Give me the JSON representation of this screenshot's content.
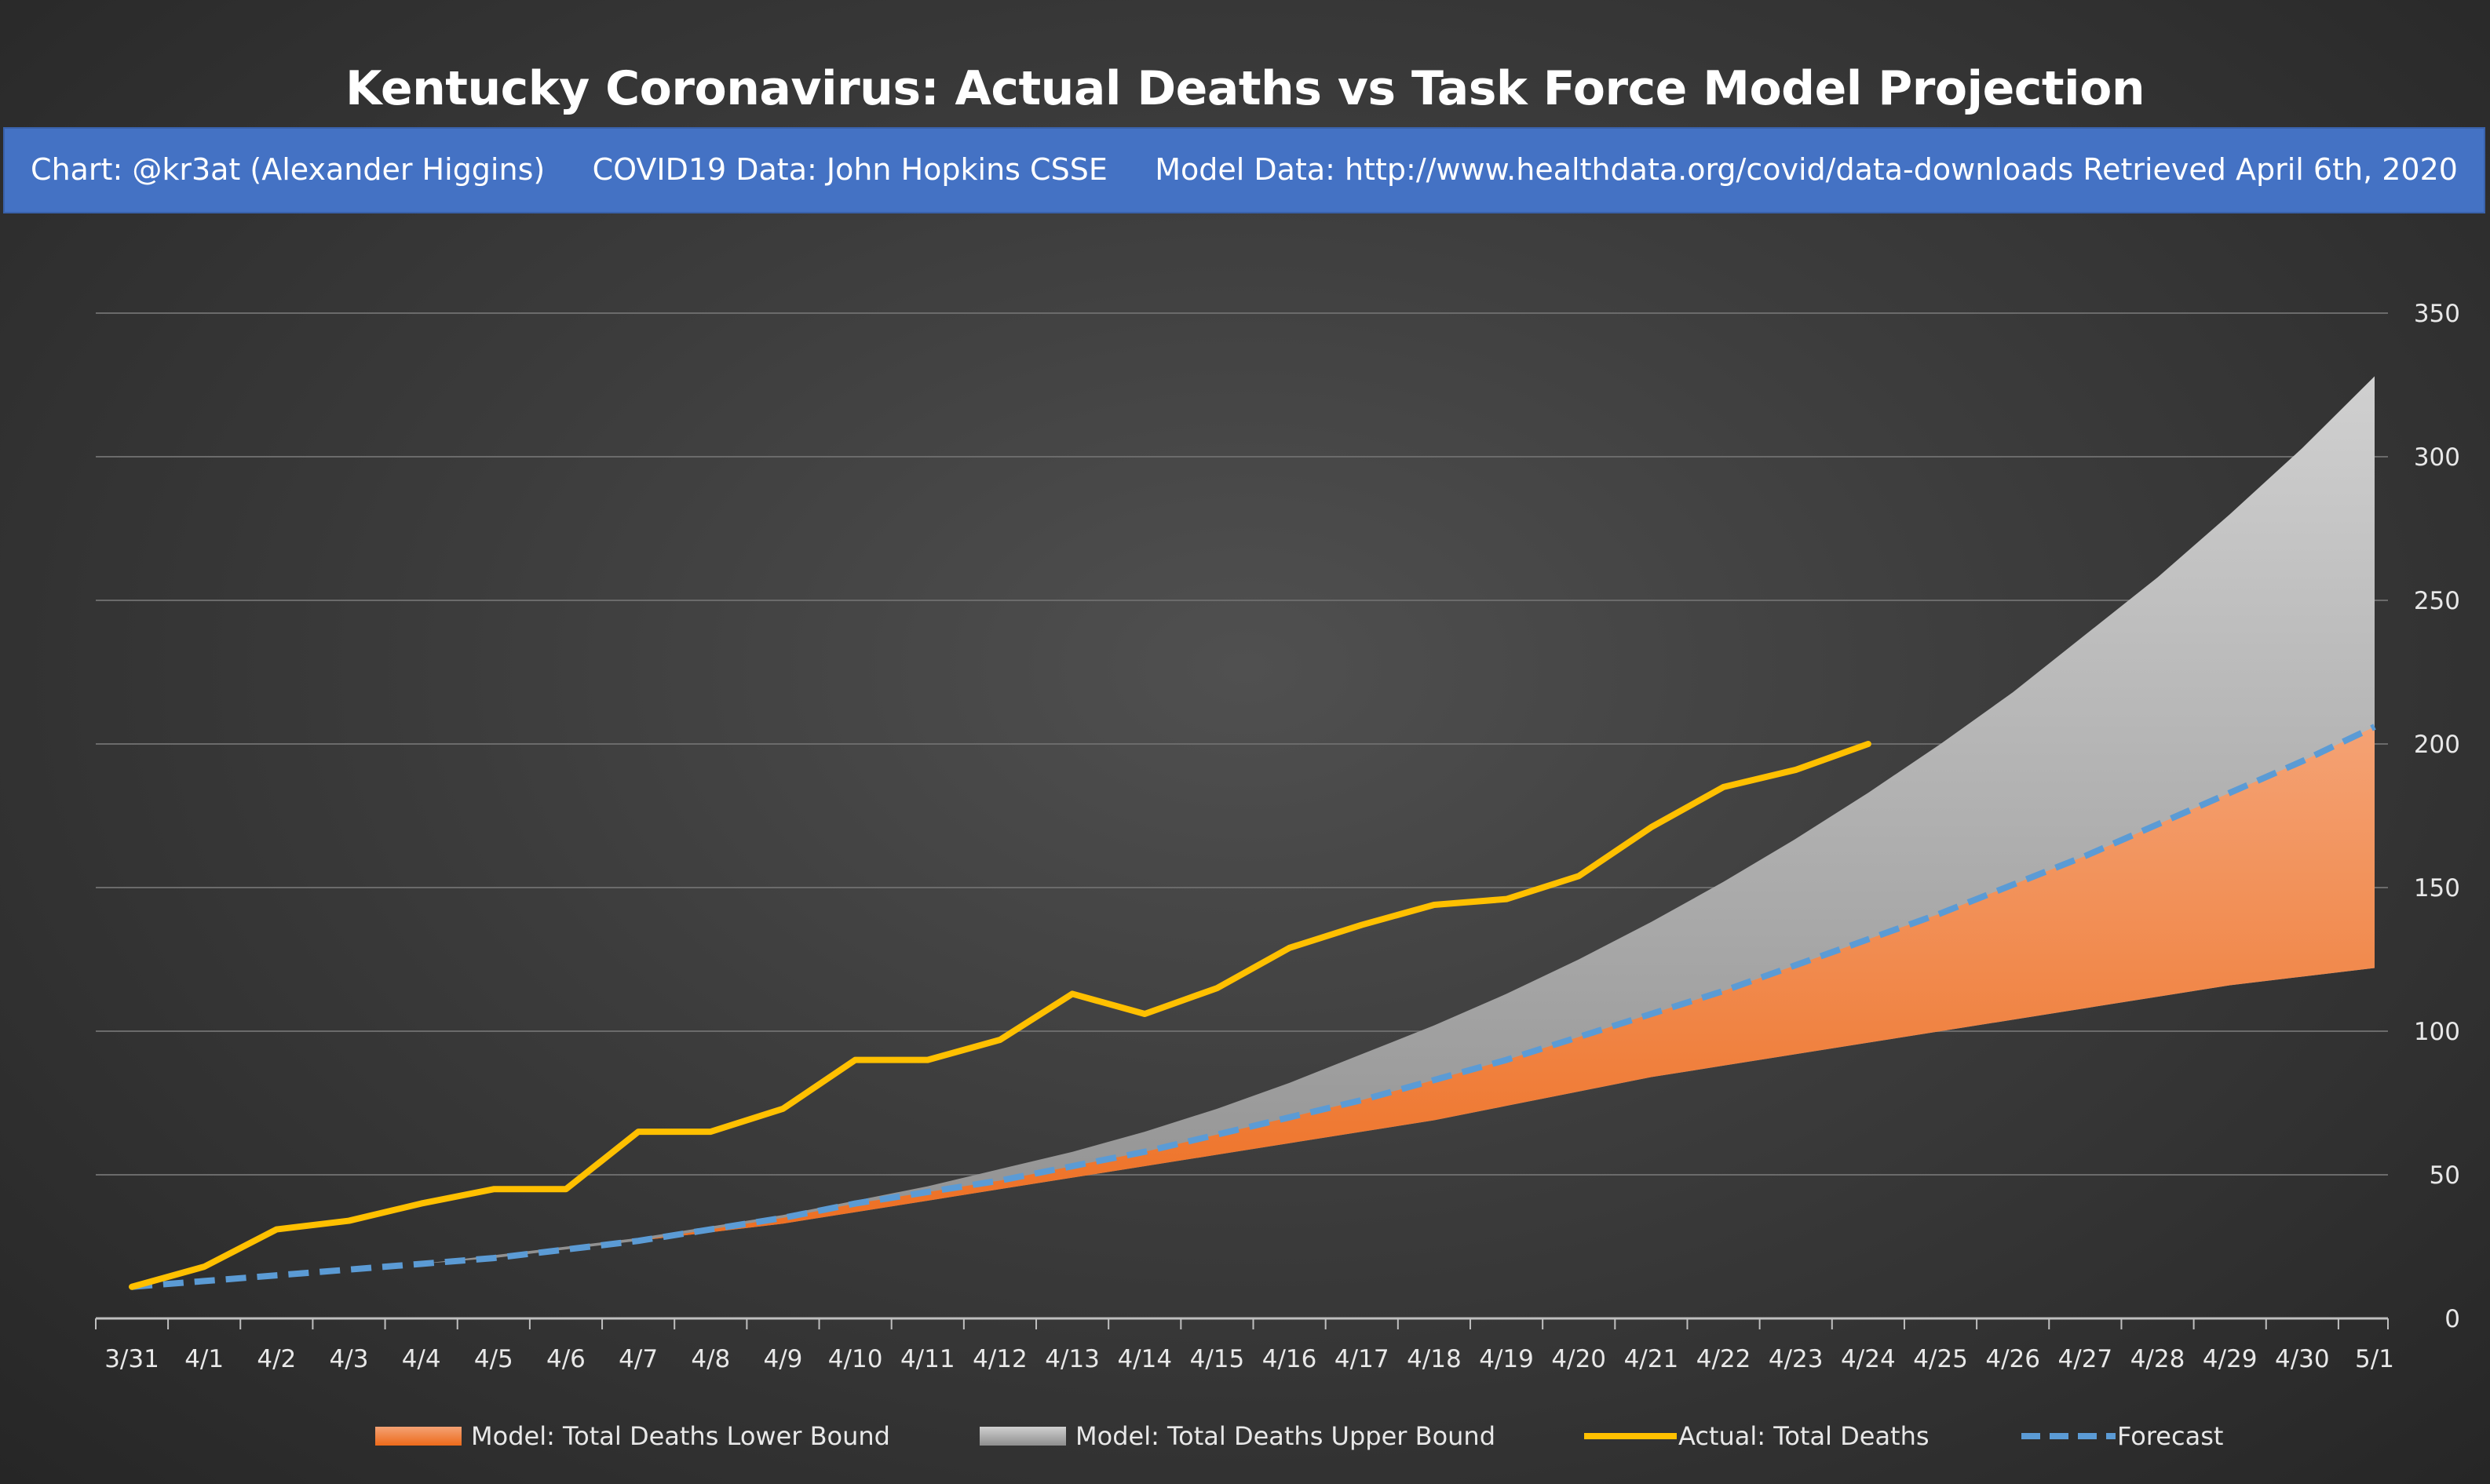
{
  "chart_data": {
    "type": "line",
    "title": "Kentucky Coronavirus: Actual Deaths vs Task Force Model Projection",
    "subtitle": "Chart: @kr3at (Alexander Higgins)     COVID19 Data: John Hopkins CSSE     Model Data: http://www.healthdata.org/covid/data-downloads Retrieved April 6th, 2020",
    "x": [
      "3/31",
      "4/1",
      "4/2",
      "4/3",
      "4/4",
      "4/5",
      "4/6",
      "4/7",
      "4/8",
      "4/9",
      "4/10",
      "4/11",
      "4/12",
      "4/13",
      "4/14",
      "4/15",
      "4/16",
      "4/17",
      "4/18",
      "4/19",
      "4/20",
      "4/21",
      "4/22",
      "4/23",
      "4/24",
      "4/25",
      "4/26",
      "4/27",
      "4/28",
      "4/29",
      "4/30",
      "5/1"
    ],
    "y_ticks": [
      "0",
      "50",
      "100",
      "150",
      "200",
      "250",
      "300",
      "350"
    ],
    "ylim": [
      0,
      350
    ],
    "y_axis_position": "right",
    "grid": true,
    "legend_position": "bottom",
    "series": [
      {
        "name": "Model: Total Deaths Lower Bound",
        "kind": "area",
        "color": "#ed7d31",
        "values": [
          11,
          13,
          15,
          17,
          19,
          21,
          24,
          27,
          30,
          33,
          37,
          41,
          45,
          49,
          53,
          57,
          61,
          65,
          69,
          74,
          79,
          84,
          88,
          92,
          96,
          100,
          104,
          108,
          112,
          116,
          119,
          122
        ]
      },
      {
        "name": "Model: Total Deaths Upper Bound",
        "kind": "area",
        "color": "#a6a6a6",
        "values": [
          11,
          13,
          15,
          17,
          19,
          22,
          25,
          28,
          32,
          36,
          41,
          46,
          52,
          58,
          65,
          73,
          82,
          92,
          102,
          113,
          125,
          138,
          152,
          167,
          183,
          200,
          218,
          238,
          258,
          280,
          303,
          328
        ]
      },
      {
        "name": "Actual: Total Deaths",
        "kind": "line",
        "color": "#ffc000",
        "values": [
          11,
          18,
          31,
          34,
          40,
          45,
          45,
          65,
          65,
          73,
          90,
          90,
          97,
          113,
          106,
          115,
          129,
          137,
          144,
          146,
          154,
          171,
          185,
          191,
          200,
          null,
          null,
          null,
          null,
          null,
          null,
          null
        ]
      },
      {
        "name": "Forecast",
        "kind": "dashed-line",
        "color": "#5b9bd5",
        "values": [
          11,
          13,
          15,
          17,
          19,
          21,
          24,
          27,
          31,
          35,
          40,
          44,
          48,
          53,
          58,
          64,
          70,
          76,
          83,
          90,
          98,
          106,
          114,
          123,
          132,
          141,
          151,
          161,
          172,
          183,
          194,
          206
        ]
      }
    ]
  }
}
